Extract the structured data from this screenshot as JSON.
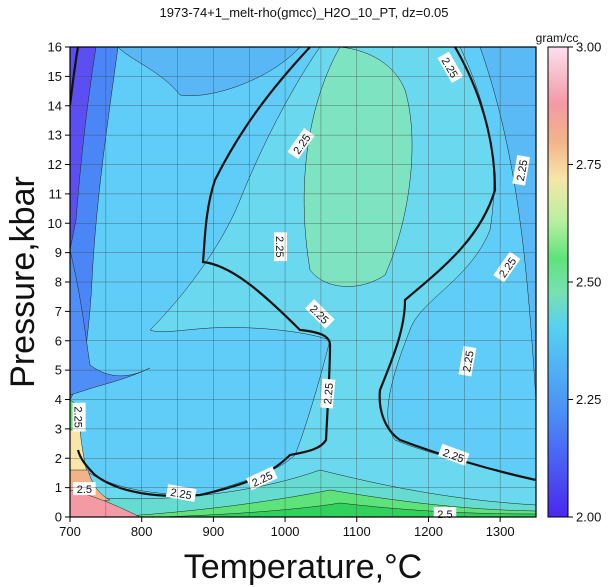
{
  "chart_data": {
    "type": "heatmap",
    "title": "1973-74+1_melt-rho(gmcc)_H2O_10_PT, dz=0.05",
    "xlabel": "Temperature,°C",
    "ylabel": "Pressure,kbar",
    "xlim": [
      700,
      1350
    ],
    "ylim": [
      0,
      16
    ],
    "xticks": [
      700,
      800,
      900,
      1000,
      1100,
      1200,
      1300
    ],
    "yticks": [
      0,
      1,
      2,
      3,
      4,
      5,
      6,
      7,
      8,
      9,
      10,
      11,
      12,
      13,
      14,
      15,
      16
    ],
    "grid": true,
    "colorbar": {
      "unit": "gram/cc",
      "range": [
        2.0,
        3.0
      ],
      "ticks": [
        "2.00",
        "2.25",
        "2.50",
        "2.75",
        "3.00"
      ],
      "colors": [
        "#3f22f0",
        "#4a7ff5",
        "#52c8f5",
        "#7fe0a0",
        "#5ee37a",
        "#d9f5b0",
        "#f7e6a8",
        "#f3b38a",
        "#f39aa5",
        "#fbe0ef"
      ]
    },
    "contour_labels": [
      {
        "text": "2.25",
        "x": 1230,
        "y": 15.3,
        "angle": 60
      },
      {
        "text": "2.25",
        "x": 1330,
        "y": 11.8,
        "angle": -80
      },
      {
        "text": "2.25",
        "x": 1310,
        "y": 8.5,
        "angle": -55
      },
      {
        "text": "2.25",
        "x": 1255,
        "y": 5.3,
        "angle": -80
      },
      {
        "text": "2.25",
        "x": 1235,
        "y": 2.1,
        "angle": 20
      },
      {
        "text": "2.25",
        "x": 1023,
        "y": 12.7,
        "angle": -55
      },
      {
        "text": "2.25",
        "x": 993,
        "y": 9.2,
        "angle": 90
      },
      {
        "text": "2.25",
        "x": 1048,
        "y": 6.9,
        "angle": 45
      },
      {
        "text": "2.25",
        "x": 1060,
        "y": 4.2,
        "angle": -85
      },
      {
        "text": "2.25",
        "x": 968,
        "y": 1.3,
        "angle": -25
      },
      {
        "text": "2.25",
        "x": 855,
        "y": 0.8,
        "angle": 10
      },
      {
        "text": "2.25",
        "x": 712,
        "y": 3.4,
        "angle": 90
      },
      {
        "text": "2.5",
        "x": 720,
        "y": 0.95,
        "angle": 0
      },
      {
        "text": "2.5",
        "x": 1223,
        "y": 0.1,
        "angle": 0
      }
    ]
  }
}
